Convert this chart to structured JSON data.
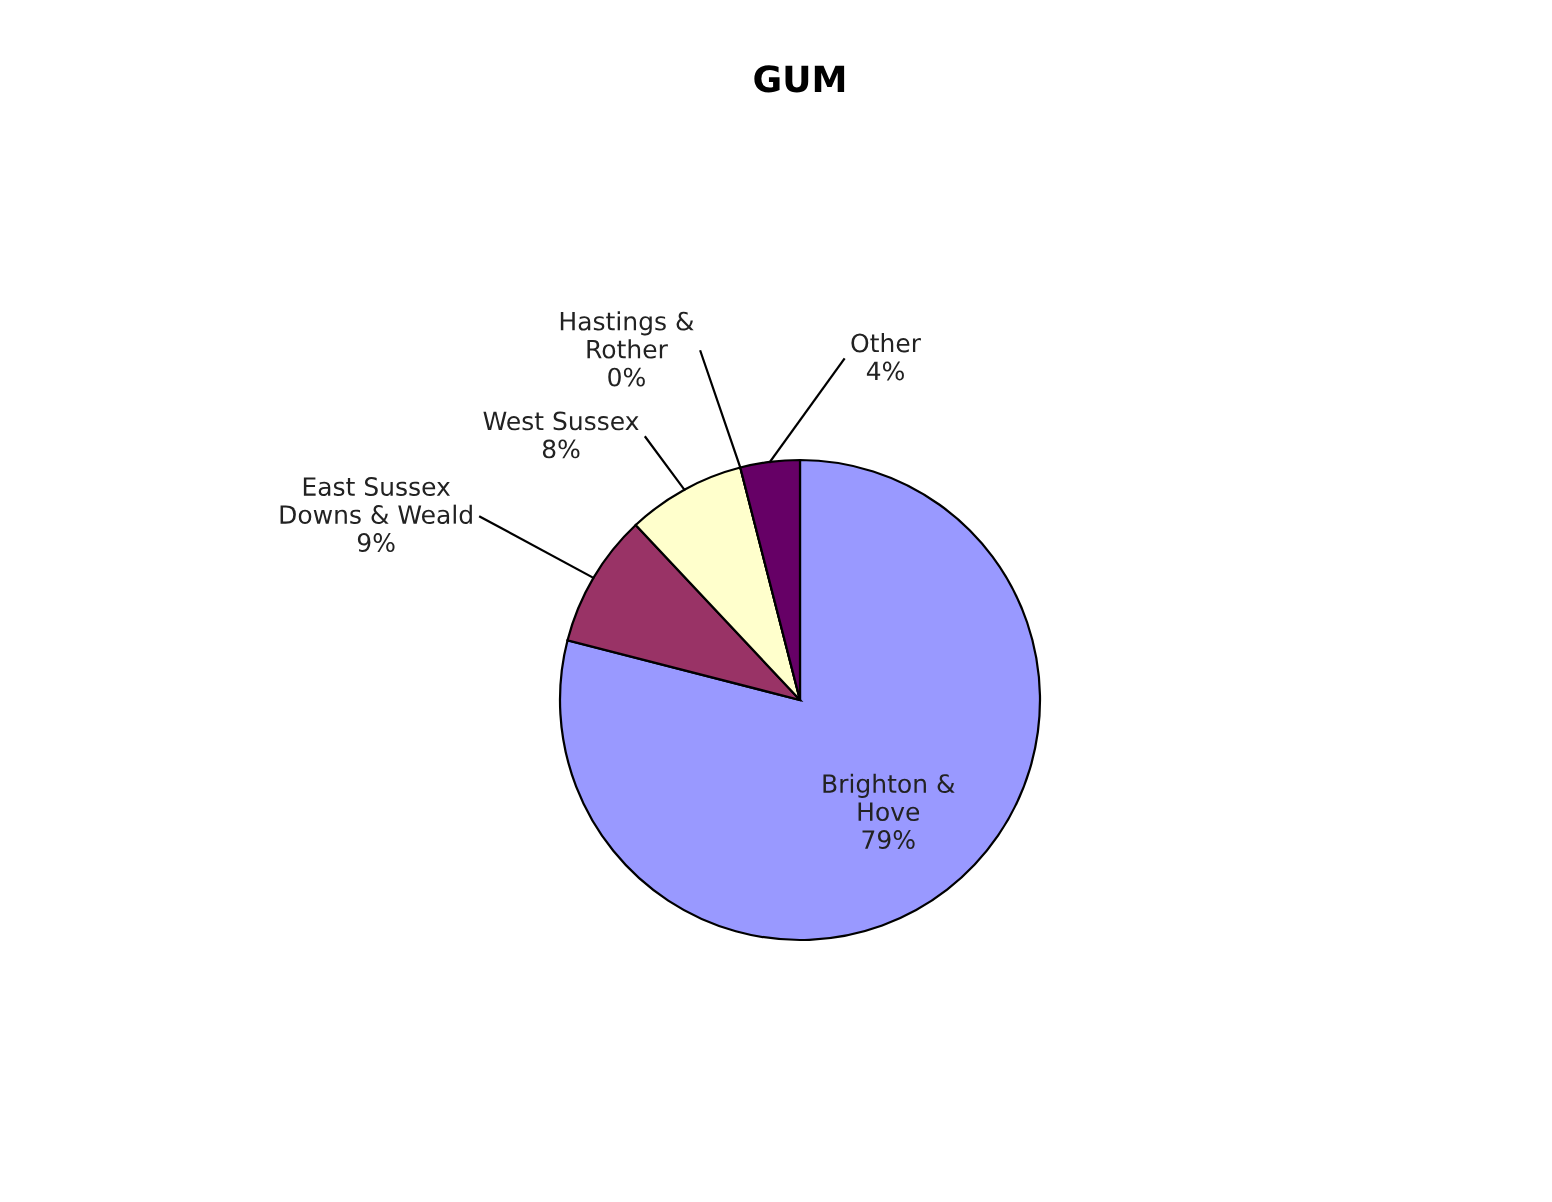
{
  "chart_data": {
    "type": "pie",
    "title": "GUM",
    "categories": [
      "Brighton &\nHove",
      "East Sussex\nDowns & Weald",
      "West Sussex",
      "Hastings &\nRother",
      "Other"
    ],
    "values": [
      79,
      9,
      8,
      0,
      4
    ],
    "value_labels": [
      "79%",
      "9%",
      "8%",
      "0%",
      "4%"
    ],
    "colors": [
      "#9999ff",
      "#993366",
      "#ffffcc",
      "#ccffff",
      "#660066"
    ],
    "legend": false
  }
}
